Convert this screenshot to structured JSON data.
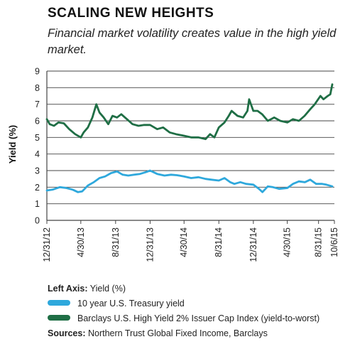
{
  "header": {
    "title": "SCALING NEW HEIGHTS",
    "subtitle": "Financial market volatility creates value in the high yield market."
  },
  "chart_data": {
    "type": "line",
    "ylabel": "Yield (%)",
    "ylim": [
      0,
      9
    ],
    "yticks": [
      0,
      1,
      2,
      3,
      4,
      5,
      6,
      7,
      8,
      9
    ],
    "grid": "horizontal",
    "x_ticks": [
      "12/31/12",
      "4/30/13",
      "8/31/13",
      "12/31/13",
      "4/30/14",
      "8/31/14",
      "12/31/14",
      "4/30/15",
      "8/31/15",
      "10/6/15"
    ],
    "series": [
      {
        "name": "10 year U.S. Treasury yield",
        "color": "#2ea8dc",
        "x": [
          "2012-12-31",
          "2013-01-20",
          "2013-02-15",
          "2013-03-10",
          "2013-04-01",
          "2013-04-20",
          "2013-05-05",
          "2013-05-25",
          "2013-06-15",
          "2013-07-05",
          "2013-07-25",
          "2013-08-15",
          "2013-09-05",
          "2013-09-25",
          "2013-10-15",
          "2013-11-05",
          "2013-11-25",
          "2013-12-15",
          "2013-12-31",
          "2014-01-25",
          "2014-02-20",
          "2014-03-15",
          "2014-04-05",
          "2014-04-30",
          "2014-05-25",
          "2014-06-20",
          "2014-07-15",
          "2014-08-05",
          "2014-08-31",
          "2014-09-20",
          "2014-10-10",
          "2014-10-25",
          "2014-11-15",
          "2014-12-05",
          "2014-12-31",
          "2015-01-20",
          "2015-02-01",
          "2015-02-20",
          "2015-03-10",
          "2015-04-01",
          "2015-04-30",
          "2015-05-20",
          "2015-06-10",
          "2015-07-01",
          "2015-07-20",
          "2015-08-10",
          "2015-08-31",
          "2015-09-15",
          "2015-10-06"
        ],
        "values": [
          1.8,
          1.85,
          2.0,
          1.95,
          1.85,
          1.7,
          1.75,
          2.1,
          2.3,
          2.55,
          2.65,
          2.85,
          2.95,
          2.75,
          2.7,
          2.75,
          2.8,
          2.9,
          3.0,
          2.8,
          2.7,
          2.75,
          2.72,
          2.65,
          2.55,
          2.6,
          2.5,
          2.45,
          2.4,
          2.55,
          2.3,
          2.2,
          2.3,
          2.2,
          2.15,
          1.9,
          1.7,
          2.05,
          2.0,
          1.9,
          1.95,
          2.2,
          2.35,
          2.3,
          2.45,
          2.2,
          2.2,
          2.15,
          2.05
        ]
      },
      {
        "name": "Barclays U.S. High Yield 2% Issuer Cap Index (yield-to-worst)",
        "color": "#1f6e45",
        "x": [
          "2012-12-31",
          "2013-01-10",
          "2013-01-25",
          "2013-02-10",
          "2013-03-01",
          "2013-03-20",
          "2013-04-10",
          "2013-04-30",
          "2013-05-10",
          "2013-05-25",
          "2013-06-10",
          "2013-06-24",
          "2013-07-05",
          "2013-07-20",
          "2013-08-05",
          "2013-08-20",
          "2013-09-05",
          "2013-09-20",
          "2013-10-10",
          "2013-10-30",
          "2013-11-20",
          "2013-12-10",
          "2013-12-31",
          "2014-01-25",
          "2014-02-15",
          "2014-03-10",
          "2014-04-01",
          "2014-04-30",
          "2014-05-25",
          "2014-06-20",
          "2014-07-15",
          "2014-07-31",
          "2014-08-15",
          "2014-08-31",
          "2014-09-20",
          "2014-10-05",
          "2014-10-15",
          "2014-11-05",
          "2014-11-25",
          "2014-12-10",
          "2014-12-16",
          "2014-12-31",
          "2015-01-15",
          "2015-01-31",
          "2015-02-20",
          "2015-03-15",
          "2015-04-05",
          "2015-04-30",
          "2015-05-20",
          "2015-06-10",
          "2015-06-30",
          "2015-07-20",
          "2015-08-05",
          "2015-08-25",
          "2015-09-05",
          "2015-09-20",
          "2015-09-29",
          "2015-10-06"
        ],
        "values": [
          6.1,
          5.8,
          5.7,
          5.9,
          5.85,
          5.5,
          5.2,
          5.0,
          5.3,
          5.6,
          6.2,
          7.0,
          6.5,
          6.2,
          5.8,
          6.3,
          6.2,
          6.4,
          6.1,
          5.8,
          5.7,
          5.75,
          5.75,
          5.5,
          5.6,
          5.3,
          5.2,
          5.1,
          5.0,
          5.0,
          4.9,
          5.2,
          5.0,
          5.6,
          5.9,
          6.3,
          6.6,
          6.3,
          6.2,
          6.6,
          7.3,
          6.6,
          6.6,
          6.4,
          6.0,
          6.2,
          6.0,
          5.9,
          6.1,
          6.0,
          6.3,
          6.7,
          7.0,
          7.5,
          7.3,
          7.5,
          7.6,
          8.2
        ]
      }
    ],
    "legend": {
      "heading_bold": "Left Axis:",
      "heading_rest": "Yield (%)",
      "position": "bottom"
    },
    "sources": {
      "label": "Sources:",
      "text": "Northern Trust Global Fixed Income, Barclays"
    }
  }
}
